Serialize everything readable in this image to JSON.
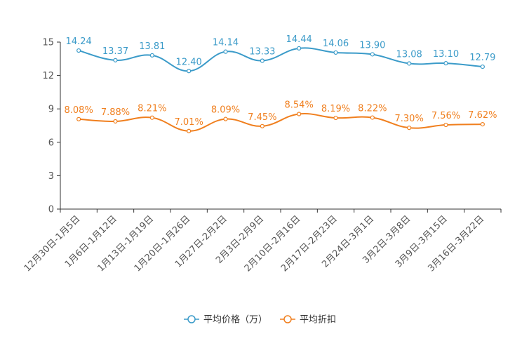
{
  "chart_data": {
    "type": "line",
    "title": "",
    "xlabel": "",
    "ylabel": "",
    "ylim": [
      0,
      15
    ],
    "yticks": [
      0,
      3,
      6,
      9,
      12,
      15
    ],
    "grid": false,
    "legend_position": "bottom",
    "categories": [
      "12月30日-1月5日",
      "1月6日-1月12日",
      "1月13日-1月19日",
      "1月20日-1月26日",
      "1月27日-2月2日",
      "2月3日-2月9日",
      "2月10日-2月16日",
      "2月17日-2月23日",
      "2月24日-3月1日",
      "3月2日-3月8日",
      "3月9日-3月15日",
      "3月16日-3月22日"
    ],
    "series": [
      {
        "name": "平均价格（万）",
        "color": "#3b9bc9",
        "values": [
          14.24,
          13.37,
          13.81,
          12.4,
          14.14,
          13.33,
          14.44,
          14.06,
          13.9,
          13.08,
          13.1,
          12.79
        ],
        "labels": [
          "14.24",
          "13.37",
          "13.81",
          "12.40",
          "14.14",
          "13.33",
          "14.44",
          "14.06",
          "13.90",
          "13.08",
          "13.10",
          "12.79"
        ]
      },
      {
        "name": "平均折扣",
        "color": "#f07f1e",
        "values": [
          8.08,
          7.88,
          8.21,
          7.01,
          8.09,
          7.45,
          8.54,
          8.19,
          8.22,
          7.3,
          7.56,
          7.62
        ],
        "labels": [
          "8.08%",
          "7.88%",
          "8.21%",
          "7.01%",
          "8.09%",
          "7.45%",
          "8.54%",
          "8.19%",
          "8.22%",
          "7.30%",
          "7.56%",
          "7.62%"
        ]
      }
    ]
  }
}
